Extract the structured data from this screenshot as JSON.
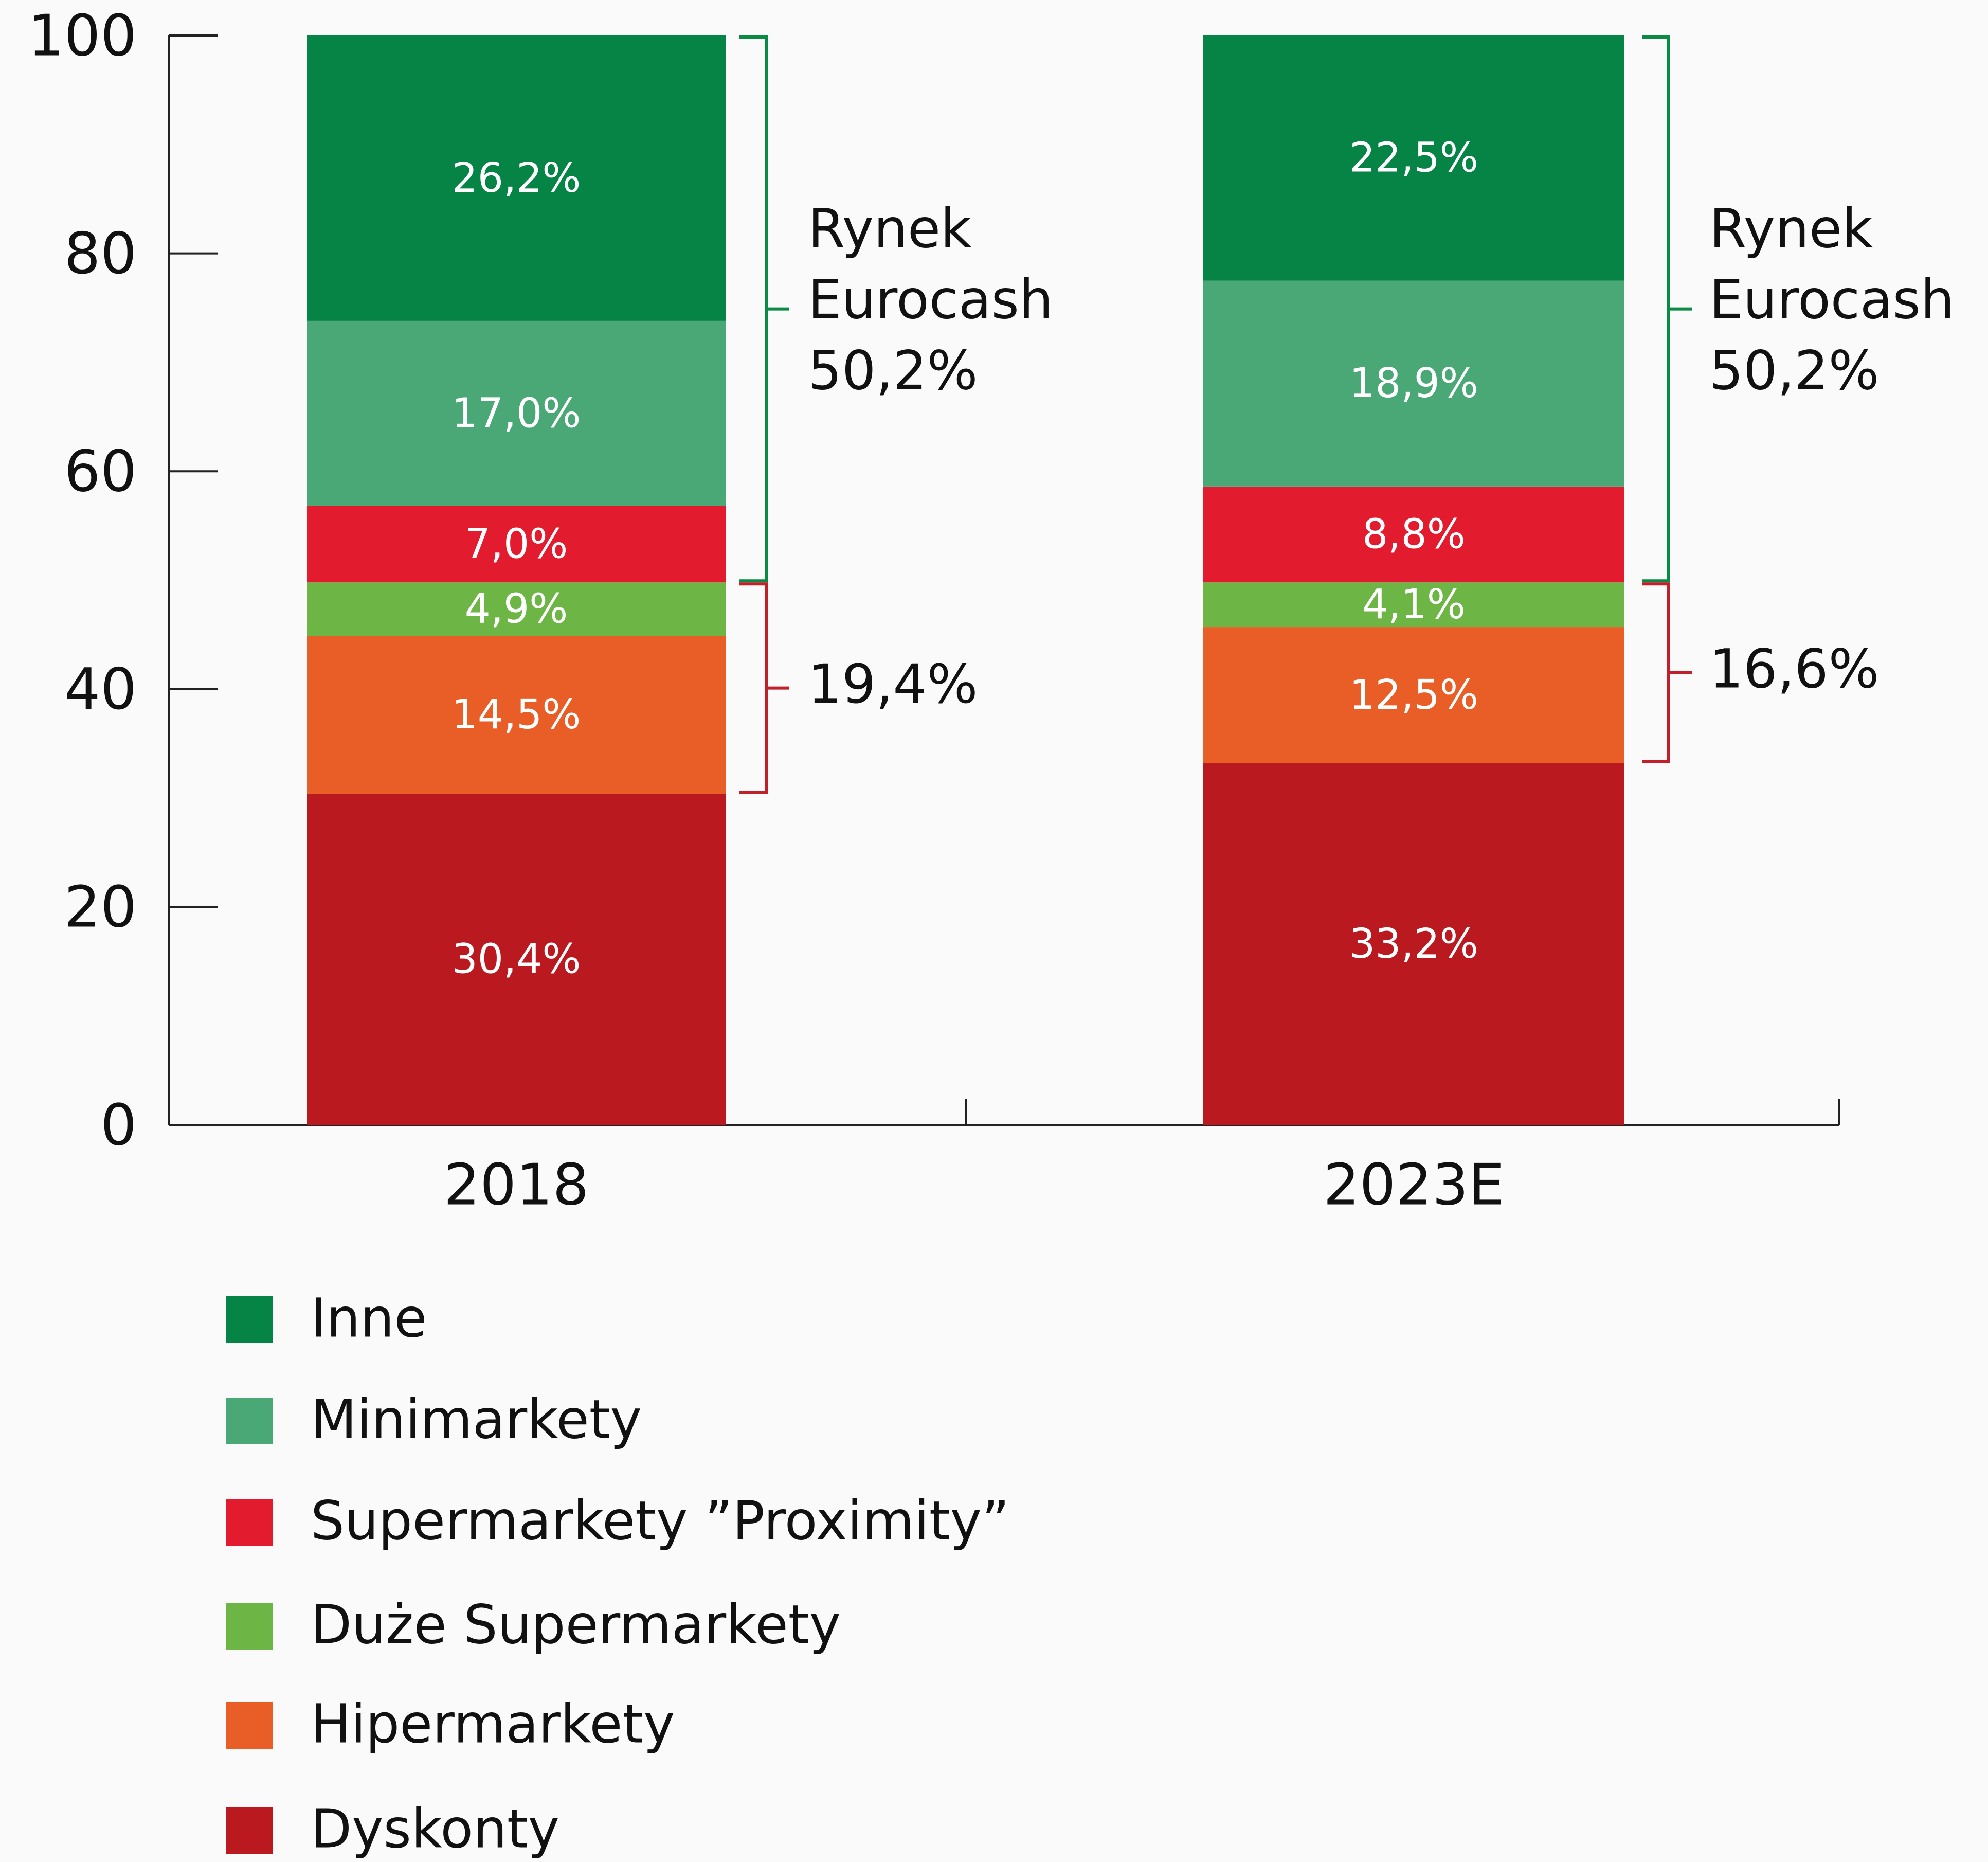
{
  "chart_data": {
    "type": "stacked-bar",
    "categories": [
      "2018",
      "2023E"
    ],
    "series": [
      {
        "name": "Dyskonty",
        "color": "#bb1920",
        "values": [
          30.4,
          33.2
        ],
        "value_labels": [
          "30,4%",
          "33,2%"
        ]
      },
      {
        "name": "Hipermarkety",
        "color": "#e95d26",
        "values": [
          14.5,
          12.5
        ],
        "value_labels": [
          "14,5%",
          "12,5%"
        ]
      },
      {
        "name": "Duże Supermarkety",
        "color": "#6db645",
        "values": [
          4.9,
          4.1
        ],
        "value_labels": [
          "4,9%",
          "4,1%"
        ]
      },
      {
        "name": "Supermarkety ”Proximity”",
        "color": "#e31b2f",
        "values": [
          7.0,
          8.8
        ],
        "value_labels": [
          "7,0%",
          "8,8%"
        ]
      },
      {
        "name": "Minimarkety",
        "color": "#4aa877",
        "values": [
          17.0,
          18.9
        ],
        "value_labels": [
          "17,0%",
          "18,9%"
        ]
      },
      {
        "name": "Inne",
        "color": "#068445",
        "values": [
          26.2,
          22.5
        ],
        "value_labels": [
          "26,2%",
          "22,5%"
        ]
      }
    ],
    "annotations": [
      [
        "Rynek Eurocash 50,2%",
        "19,4%"
      ],
      [
        "Rynek Eurocash 50,2%",
        "16,6%"
      ]
    ],
    "ylim": [
      0,
      100
    ],
    "yticks": [
      0,
      20,
      40,
      60,
      80,
      100
    ],
    "grid": false,
    "legend": "bottom"
  }
}
